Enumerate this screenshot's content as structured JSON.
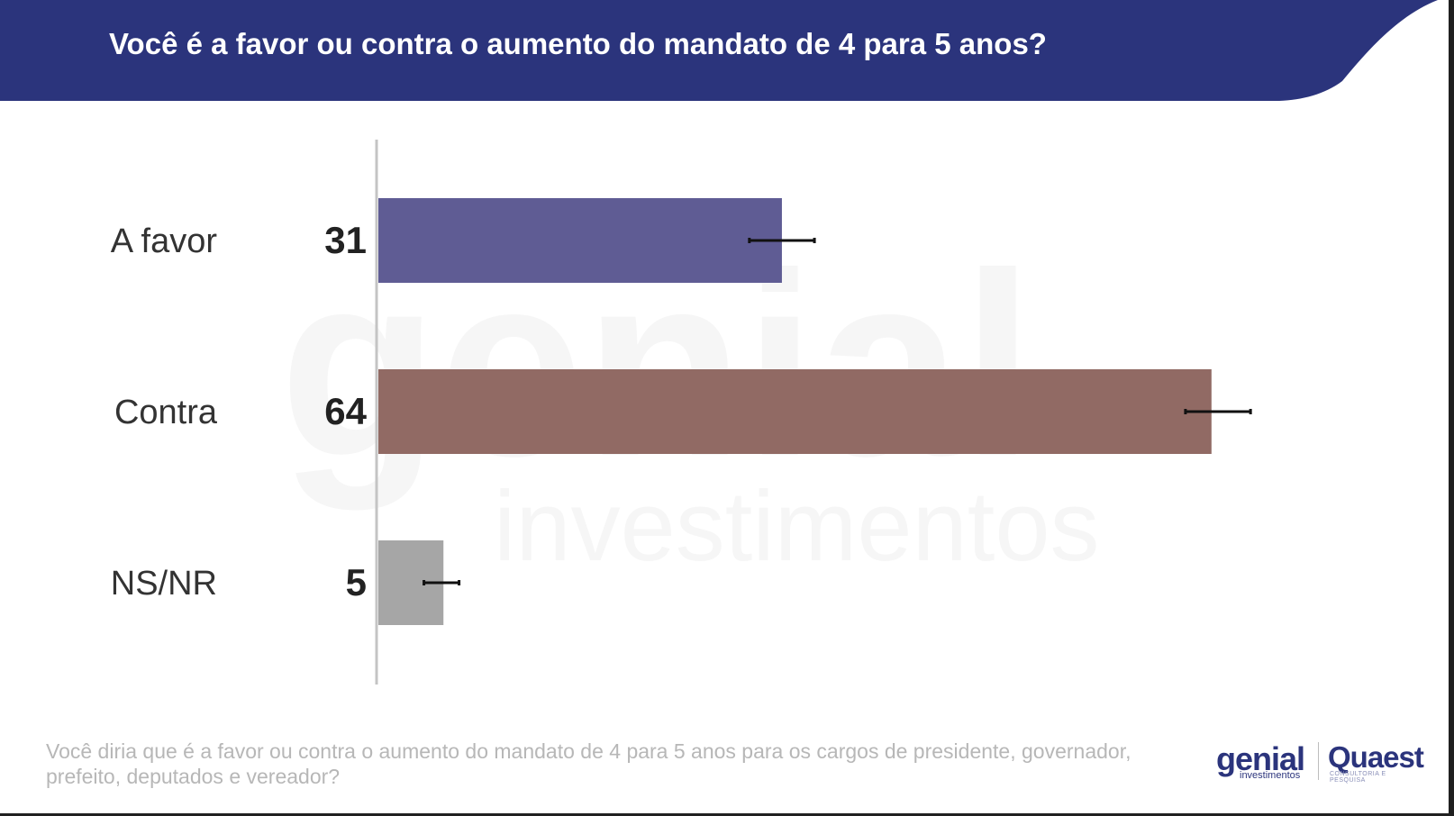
{
  "header": {
    "title": "Você é a favor ou contra o aumento do mandato de 4 para 5 anos?",
    "color": "#2b347c"
  },
  "chart_data": {
    "type": "bar",
    "orientation": "horizontal",
    "categories": [
      "A favor",
      "Contra",
      "NS/NR"
    ],
    "values": [
      31,
      64,
      5
    ],
    "value_labels": [
      "31",
      "64",
      "5"
    ],
    "error_bars": [
      [
        28.5,
        33.5
      ],
      [
        62,
        67
      ],
      [
        3.5,
        6.2
      ]
    ],
    "colors": [
      "#5f5c94",
      "#916a64",
      "#a6a6a6"
    ],
    "xlim": [
      0,
      100
    ],
    "grid": false,
    "title": "",
    "xlabel": "",
    "ylabel": ""
  },
  "footnote": "Você diria que é a favor ou contra o aumento do mandato de 4 para 5 anos para os cargos de presidente, governador, prefeito, deputados e vereador?",
  "watermark": {
    "brand": "genial",
    "sub": "investimentos"
  },
  "logos": {
    "genial": "genial",
    "genial_sub": "investimentos",
    "quaest": "Quaest",
    "quaest_sub": "CONSULTORIA E PESQUISA"
  }
}
